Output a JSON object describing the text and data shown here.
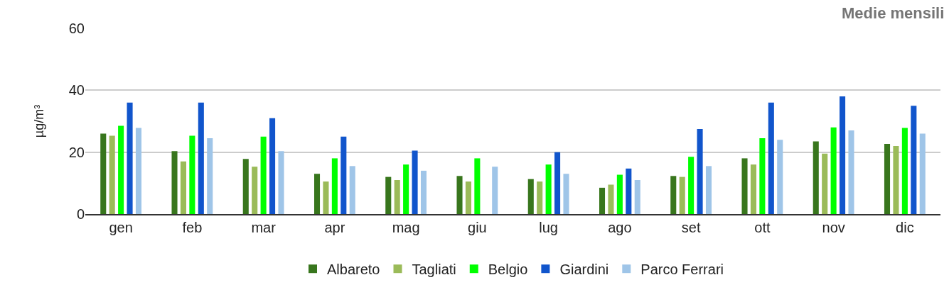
{
  "chart_data": {
    "type": "bar",
    "title": "Medie mensili",
    "ylabel": "µg/m³",
    "categories": [
      "gen",
      "feb",
      "mar",
      "apr",
      "mag",
      "giu",
      "lug",
      "ago",
      "set",
      "ott",
      "nov",
      "dic"
    ],
    "series": [
      {
        "name": "Albareto",
        "color": "#38761d",
        "values": [
          26,
          20.3,
          17.8,
          13,
          12,
          12.3,
          11.3,
          8.5,
          12.3,
          18,
          23.5,
          22.7
        ]
      },
      {
        "name": "Tagliati",
        "color": "#9bbb59",
        "values": [
          25.3,
          17,
          15.3,
          10.5,
          11,
          10.5,
          10.5,
          9.5,
          12,
          16,
          19.5,
          22
        ]
      },
      {
        "name": "Belgio",
        "color": "#00ff00",
        "values": [
          28.5,
          25.3,
          25,
          18,
          16,
          18,
          16,
          12.7,
          18.5,
          24.5,
          28,
          27.8
        ]
      },
      {
        "name": "Giardini",
        "color": "#1155cc",
        "values": [
          36,
          36,
          31,
          25,
          20.5,
          null,
          20,
          14.7,
          27.5,
          36,
          38,
          35
        ]
      },
      {
        "name": "Parco Ferrari",
        "color": "#9fc5e8",
        "values": [
          27.8,
          24.5,
          20.3,
          15.5,
          14,
          15.3,
          13,
          11,
          15.5,
          24,
          27,
          26
        ]
      }
    ],
    "ylim": [
      0,
      60
    ],
    "yticks": [
      0,
      20,
      40,
      60
    ],
    "grid": "y",
    "legend": "bottom"
  }
}
